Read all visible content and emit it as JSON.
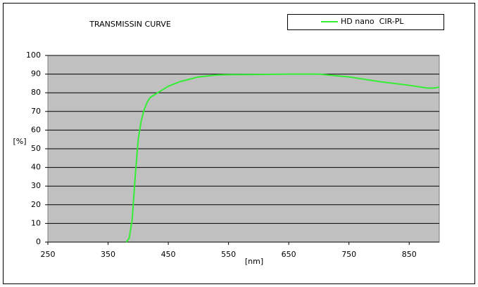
{
  "chart_data": {
    "type": "line",
    "title": "TRANSMISSIN CURVE",
    "xlabel": "[nm]",
    "ylabel": "[%]",
    "x": [
      380,
      385,
      390,
      395,
      400,
      405,
      410,
      415,
      420,
      430,
      440,
      450,
      470,
      500,
      530,
      550,
      600,
      650,
      700,
      750,
      800,
      850,
      880,
      890,
      900
    ],
    "series": [
      {
        "name": "HD nano  CIR-PL",
        "color": "#33ee33",
        "values": [
          0,
          2,
          12,
          35,
          55,
          65,
          71,
          75,
          77.5,
          79.5,
          81.5,
          83.5,
          86,
          88.5,
          89.5,
          89.7,
          89.8,
          90,
          90,
          88.5,
          86,
          84,
          82.5,
          82.5,
          83
        ]
      }
    ],
    "xlim": [
      250,
      900
    ],
    "ylim": [
      0,
      100
    ],
    "xticks": [
      250,
      350,
      450,
      550,
      650,
      750,
      850
    ],
    "yticks": [
      0,
      10,
      20,
      30,
      40,
      50,
      60,
      70,
      80,
      90,
      100
    ],
    "grid": true
  }
}
